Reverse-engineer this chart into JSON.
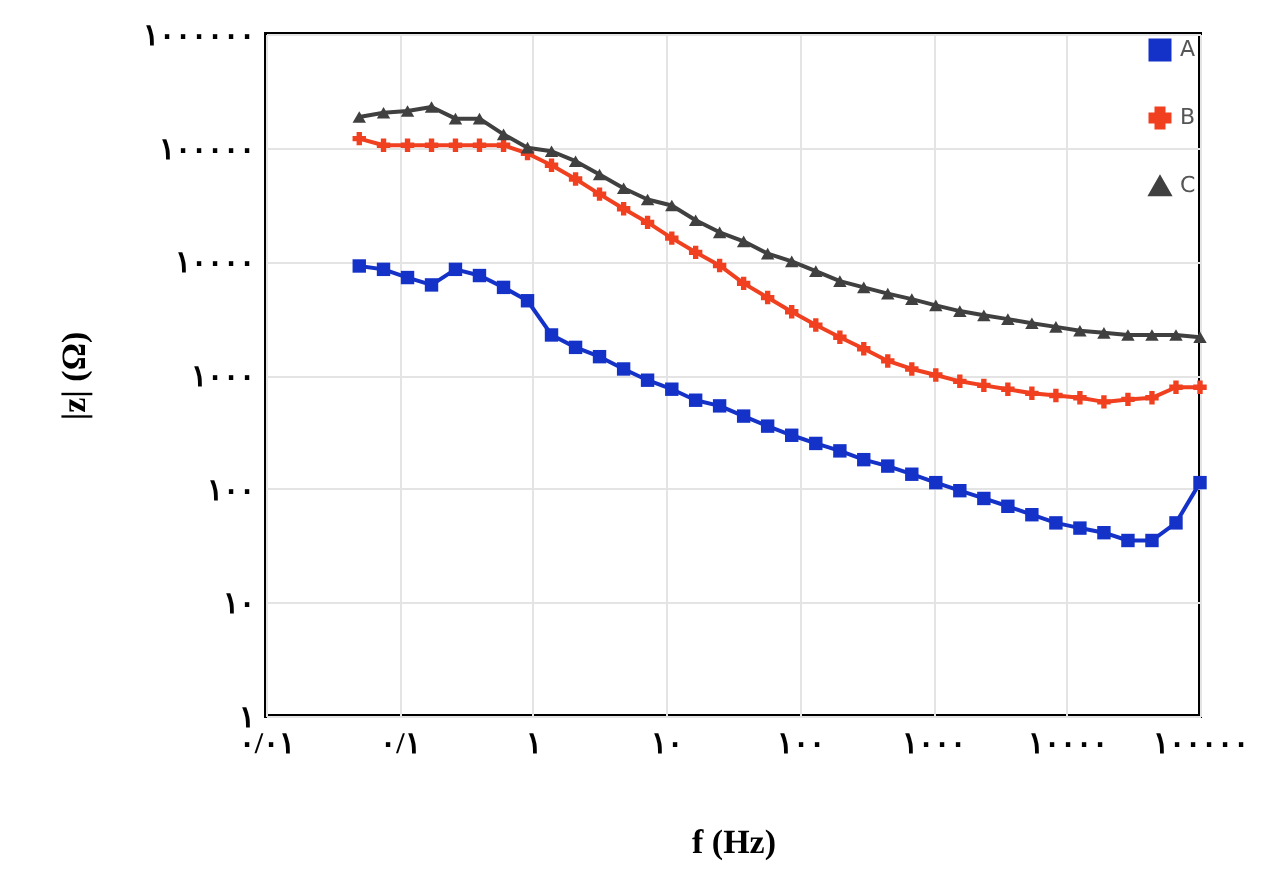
{
  "chart_data": {
    "type": "line",
    "xlabel": "f (Hz)",
    "ylabel": "|z| (Ω)",
    "log": "xy",
    "grid": true,
    "legend": "top right",
    "line_style": "solid",
    "xlim": [
      0.01,
      100000
    ],
    "ylim": [
      1,
      1000000
    ],
    "xticks": [
      {
        "value": 0.01,
        "label": "۰/۰۱"
      },
      {
        "value": 0.1,
        "label": "۰/۱"
      },
      {
        "value": 1,
        "label": "۱"
      },
      {
        "value": 10,
        "label": "۱۰"
      },
      {
        "value": 100,
        "label": "۱۰۰"
      },
      {
        "value": 1000,
        "label": "۱۰۰۰"
      },
      {
        "value": 10000,
        "label": "۱۰۰۰۰"
      },
      {
        "value": 100000,
        "label": "۱۰۰۰۰۰"
      }
    ],
    "yticks": [
      {
        "value": 1,
        "label": "۱"
      },
      {
        "value": 10,
        "label": "۱۰"
      },
      {
        "value": 100,
        "label": "۱۰۰"
      },
      {
        "value": 1000,
        "label": "۱۰۰۰"
      },
      {
        "value": 10000,
        "label": "۱۰۰۰۰"
      },
      {
        "value": 100000,
        "label": "۱۰۰۰۰۰"
      },
      {
        "value": 1000000,
        "label": "۱۰۰۰۰۰۰"
      }
    ],
    "x": [
      0.05,
      0.076,
      0.115,
      0.174,
      0.263,
      0.398,
      0.603,
      0.912,
      1.38,
      2.09,
      3.16,
      4.79,
      7.24,
      11,
      16.6,
      25.1,
      38,
      57.5,
      87.1,
      132,
      200,
      302,
      457,
      692,
      1047,
      1585,
      2399,
      3631,
      5495,
      8318,
      12589,
      19055,
      28840,
      43652,
      66069,
      100000
    ],
    "series": [
      {
        "name": "A",
        "color": "#1432c8",
        "marker": "square",
        "values": [
          9100,
          8500,
          7200,
          6200,
          8500,
          7500,
          5900,
          4500,
          2250,
          1750,
          1450,
          1130,
          900,
          750,
          600,
          535,
          435,
          355,
          295,
          250,
          215,
          180,
          158,
          134,
          113,
          96,
          82,
          70,
          59,
          50,
          45,
          41,
          35,
          35,
          50,
          113
        ]
      },
      {
        "name": "B",
        "color": "#f04020",
        "marker": "cross",
        "values": [
          120000,
          105000,
          105000,
          105000,
          105000,
          105000,
          105000,
          89000,
          70000,
          53000,
          39000,
          29000,
          22000,
          16000,
          12000,
          9200,
          6400,
          4800,
          3600,
          2750,
          2150,
          1700,
          1330,
          1130,
          1000,
          880,
          810,
          750,
          690,
          660,
          630,
          580,
          610,
          630,
          780,
          780
        ]
      },
      {
        "name": "C",
        "color": "#404040",
        "marker": "triangle",
        "values": [
          186000,
          203000,
          210000,
          228000,
          180000,
          180000,
          131000,
          100000,
          93000,
          76000,
          58000,
          44000,
          35000,
          31000,
          23000,
          18000,
          15000,
          11700,
          10000,
          8200,
          6700,
          5900,
          5200,
          4650,
          4100,
          3650,
          3350,
          3100,
          2850,
          2650,
          2450,
          2350,
          2250,
          2250,
          2250,
          2150
        ]
      }
    ]
  }
}
